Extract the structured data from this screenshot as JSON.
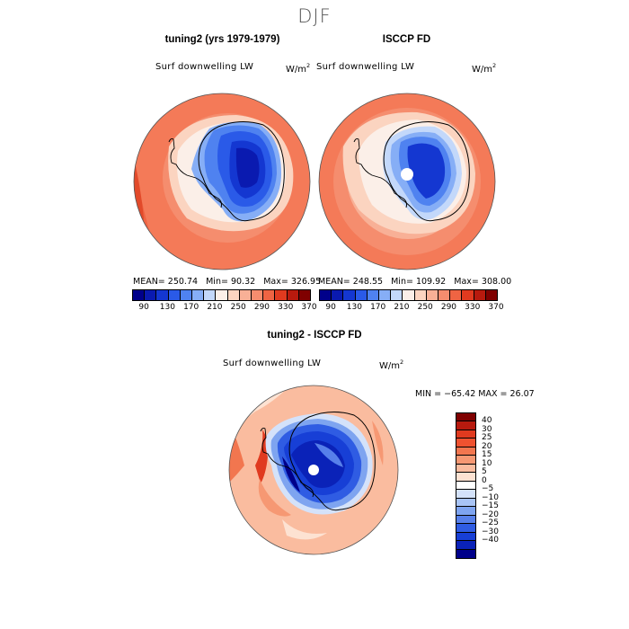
{
  "season": "DJF",
  "panels": {
    "left": {
      "title": "tuning2 (yrs 1979-1979)",
      "variable": "Surf downwelling LW",
      "unit_base": "W/m",
      "unit_exp": "2",
      "mean_label": "MEAN=",
      "mean": "250.74",
      "min_label": "Min=",
      "min": "90.32",
      "max_label": "Max=",
      "max": "326.95"
    },
    "right": {
      "title": "ISCCP FD",
      "variable": "Surf downwelling LW",
      "unit_base": "W/m",
      "unit_exp": "2",
      "mean_label": "MEAN=",
      "mean": "248.55",
      "min_label": "Min=",
      "min": "109.92",
      "max_label": "Max=",
      "max": "308.00"
    },
    "diff": {
      "title": "tuning2 - ISCCP FD",
      "variable": "Surf downwelling LW",
      "unit_base": "W/m",
      "unit_exp": "2",
      "minmax_text": "MIN = −65.42  MAX =  26.07"
    }
  },
  "colorbar_abs": {
    "colors": [
      "#00008a",
      "#0a1ab0",
      "#1437d1",
      "#2a5ae8",
      "#4f82f0",
      "#86aef6",
      "#c3d8fa",
      "#fbefe8",
      "#fbd4c0",
      "#f8b096",
      "#f58d6e",
      "#ef6443",
      "#e03a1f",
      "#b81a0e",
      "#7f0000"
    ],
    "ticks": [
      "90",
      "130",
      "170",
      "210",
      "250",
      "290",
      "330",
      "370"
    ]
  },
  "colorbar_diff": {
    "colors": [
      "#7f0000",
      "#b81a0e",
      "#e03a1f",
      "#ef5230",
      "#f2764f",
      "#f69873",
      "#fabc9f",
      "#fde2d2",
      "#ffffff",
      "#d4e2fa",
      "#a8c4f6",
      "#7ea4f0",
      "#5780ea",
      "#2f5ce3",
      "#173fd6",
      "#0a22b8",
      "#00008a"
    ],
    "ticks": [
      "40",
      "30",
      "25",
      "20",
      "15",
      "10",
      "5",
      "0",
      "−5",
      "−10",
      "−15",
      "−20",
      "−25",
      "−30",
      "−40"
    ]
  }
}
